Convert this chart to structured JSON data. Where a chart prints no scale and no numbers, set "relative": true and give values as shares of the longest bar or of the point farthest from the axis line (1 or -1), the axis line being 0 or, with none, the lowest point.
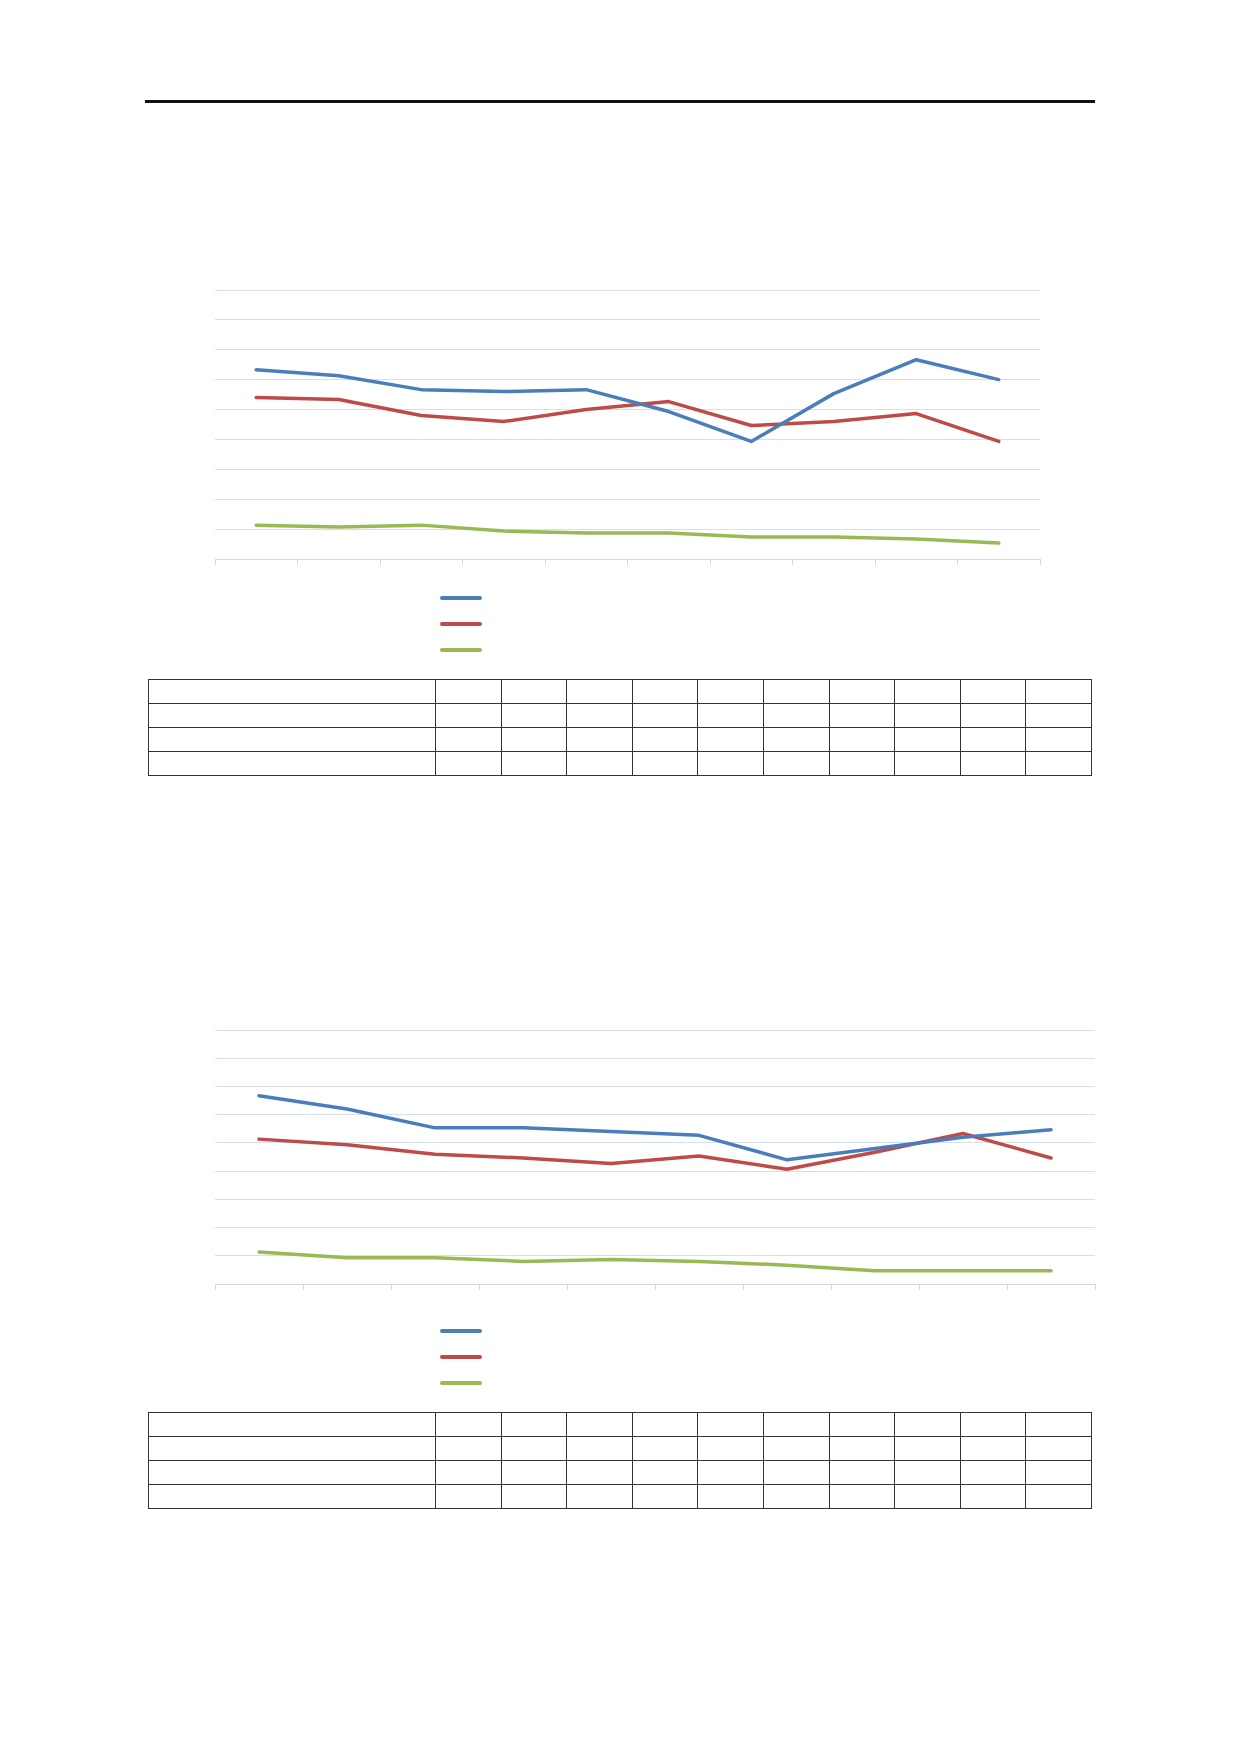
{
  "chart_data": [
    {
      "type": "line",
      "relative": true,
      "categories": [
        null,
        null,
        null,
        null,
        null,
        null,
        null,
        null,
        null,
        null
      ],
      "grid": "y",
      "tick_labels": false,
      "marker": "none",
      "line_style": "solid",
      "series": [
        {
          "color": "#4a7ebb",
          "values": [
            0.95,
            0.92,
            0.85,
            0.84,
            0.85,
            0.74,
            0.59,
            0.83,
            1,
            0.9
          ]
        },
        {
          "color": "#be4b48",
          "values": [
            0.81,
            0.8,
            0.72,
            0.69,
            0.75,
            0.79,
            0.67,
            0.69,
            0.73,
            0.59
          ]
        },
        {
          "color": "#98b954",
          "values": [
            0.17,
            0.16,
            0.17,
            0.14,
            0.13,
            0.13,
            0.11,
            0.11,
            0.1,
            0.08
          ]
        }
      ]
    },
    {
      "type": "line",
      "relative": true,
      "categories": [
        null,
        null,
        null,
        null,
        null,
        null,
        null,
        null,
        null,
        null
      ],
      "grid": "y",
      "tick_labels": false,
      "marker": "none",
      "line_style": "solid",
      "series": [
        {
          "color": "#4a7ebb",
          "values": [
            1,
            0.93,
            0.83,
            0.83,
            0.81,
            0.79,
            0.66,
            0.72,
            0.78,
            0.82
          ]
        },
        {
          "color": "#be4b48",
          "values": [
            0.77,
            0.74,
            0.69,
            0.67,
            0.64,
            0.68,
            0.61,
            0.7,
            0.8,
            0.67
          ]
        },
        {
          "color": "#98b954",
          "values": [
            0.17,
            0.14,
            0.14,
            0.12,
            0.13,
            0.12,
            0.1,
            0.07,
            0.07,
            0.07
          ]
        }
      ]
    }
  ]
}
